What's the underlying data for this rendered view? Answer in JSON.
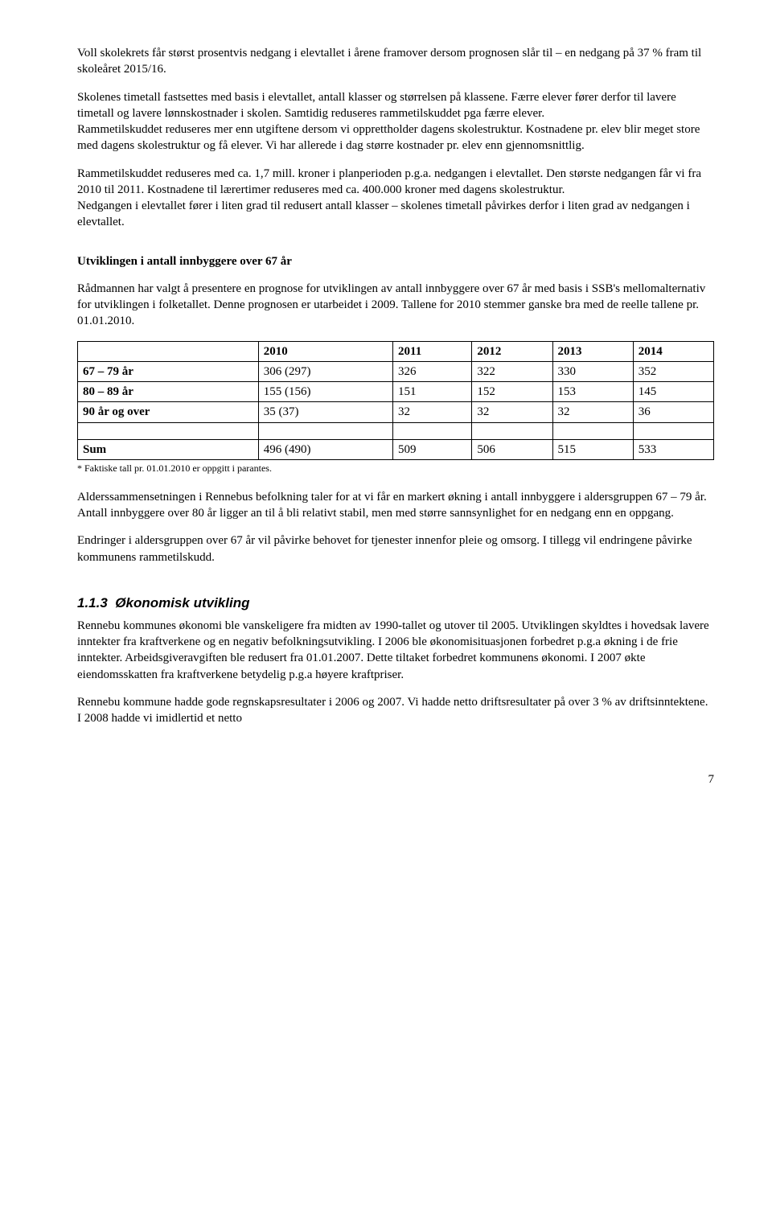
{
  "para1": "Voll skolekrets får størst prosentvis nedgang i elevtallet i årene framover dersom prognosen slår til – en nedgang på 37 % fram til skoleåret 2015/16.",
  "para2": "Skolenes timetall fastsettes med basis i elevtallet, antall klasser og størrelsen på klassene. Færre elever fører derfor til lavere timetall og lavere lønnskostnader i skolen. Samtidig reduseres rammetilskuddet pga færre elever.",
  "para3": "Rammetilskuddet reduseres mer enn utgiftene dersom vi opprettholder dagens skolestruktur. Kostnadene pr. elev blir meget store med dagens skolestruktur og få elever.   Vi har allerede i dag større kostnader pr. elev enn gjennomsnittlig.",
  "para4": "Rammetilskuddet reduseres med ca. 1,7 mill. kroner i planperioden p.g.a. nedgangen i elevtallet.  Den største nedgangen får vi fra 2010 til 2011.   Kostnadene til lærertimer reduseres med ca. 400.000 kroner med dagens skolestruktur.",
  "para5": "Nedgangen i elevtallet fører i liten grad til redusert antall klasser – skolenes timetall påvirkes derfor i liten grad av nedgangen i elevtallet.",
  "section_heading_67": "Utviklingen i antall innbyggere over 67 år",
  "para6": "Rådmannen har valgt å presentere en prognose for utviklingen av antall innbyggere over 67 år med basis i SSB's mellomalternativ for utviklingen i folketallet.  Denne prognosen er utarbeidet i 2009.  Tallene for 2010 stemmer ganske bra med de reelle tallene pr. 01.01.2010.",
  "table": {
    "columns": [
      "",
      "2010",
      "2011",
      "2012",
      "2013",
      "2014"
    ],
    "rows": [
      {
        "label": "67 – 79 år",
        "cells": [
          "306   (297)",
          "326",
          "322",
          "330",
          "352"
        ]
      },
      {
        "label": "80 – 89 år",
        "cells": [
          "155   (156)",
          "151",
          "152",
          "153",
          "145"
        ]
      },
      {
        "label": "90 år og over",
        "cells": [
          "35     (37)",
          "32",
          "32",
          "32",
          "36"
        ]
      }
    ],
    "sum": {
      "label": "Sum",
      "cells": [
        "496   (490)",
        "509",
        "506",
        "515",
        "533"
      ]
    }
  },
  "table_footnote": "* Faktiske tall pr. 01.01.2010 er oppgitt i parantes.",
  "para7": "Alderssammensetningen i Rennebus befolkning taler for at vi får en markert økning i antall innbyggere i aldersgruppen 67 – 79 år.  Antall innbyggere over 80 år ligger an til å bli relativt stabil, men med større sannsynlighet for en nedgang enn en oppgang.",
  "para8": "Endringer i aldersgruppen over 67 år vil påvirke behovet for tjenester innenfor pleie og omsorg.  I tillegg vil endringene påvirke kommunens rammetilskudd.",
  "heading_113_num": "1.1.3",
  "heading_113_text": "Økonomisk utvikling",
  "para9": "Rennebu kommunes økonomi ble vanskeligere fra midten av 1990-tallet og utover til 2005. Utviklingen skyldtes i hovedsak lavere inntekter fra kraftverkene og en negativ befolkningsutvikling.  I 2006 ble økonomisituasjonen forbedret p.g.a økning i de frie inntekter.   Arbeidsgiveravgiften ble redusert fra 01.01.2007.  Dette tiltaket forbedret kommunens økonomi.  I 2007 økte eiendomsskatten fra kraftverkene betydelig p.g.a høyere kraftpriser.",
  "para10": "Rennebu kommune hadde gode regnskapsresultater i 2006 og 2007. Vi hadde netto driftsresultater på over 3 % av driftsinntektene.  I 2008 hadde vi imidlertid et netto",
  "page_number": "7"
}
